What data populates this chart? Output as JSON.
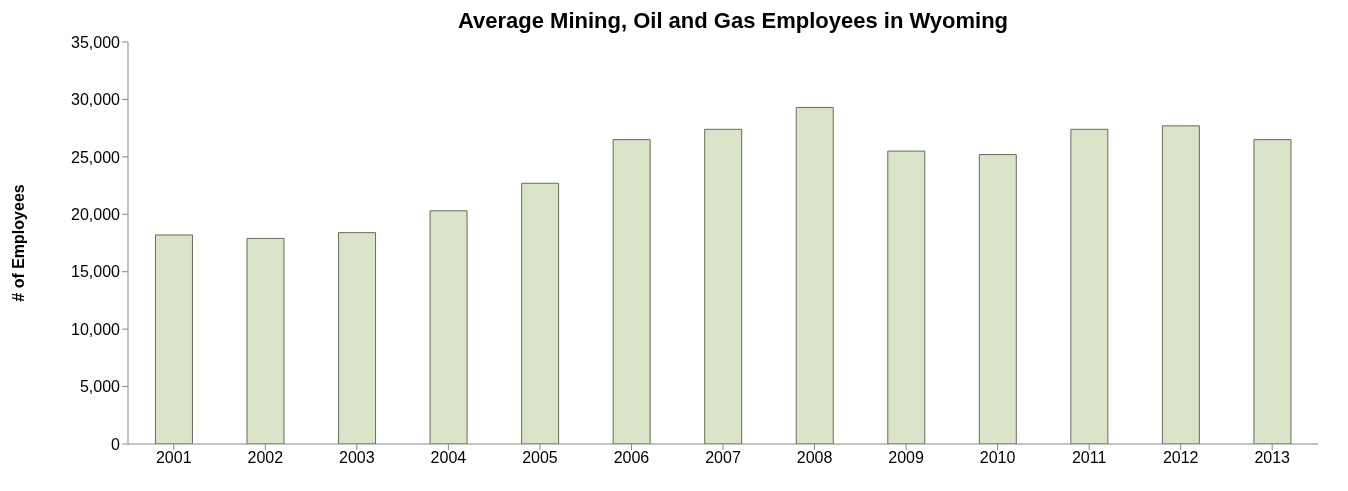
{
  "chart_data": {
    "type": "bar",
    "title": "Average Mining, Oil and Gas Employees in Wyoming",
    "ylabel": "# of Employees",
    "categories": [
      "2001",
      "2002",
      "2003",
      "2004",
      "2005",
      "2006",
      "2007",
      "2008",
      "2009",
      "2010",
      "2011",
      "2012",
      "2013"
    ],
    "values": [
      18200,
      17900,
      18400,
      20300,
      22700,
      26500,
      27400,
      29300,
      25500,
      25200,
      27400,
      27700,
      26500
    ],
    "color": "#d9e4c8",
    "ylim": [
      0,
      35000
    ],
    "yticks": [
      0,
      {
        "value": 5000,
        "label": "5,000"
      },
      {
        "value": 10000,
        "label": "10,000"
      },
      {
        "value": 15000,
        "label": "15,000"
      },
      {
        "value": 20000,
        "label": "20,000"
      },
      {
        "value": 25000,
        "label": "25,000"
      },
      {
        "value": 30000,
        "label": "30,000"
      },
      {
        "value": 35000,
        "label": "35,000"
      }
    ],
    "grid": false,
    "legend": false
  }
}
